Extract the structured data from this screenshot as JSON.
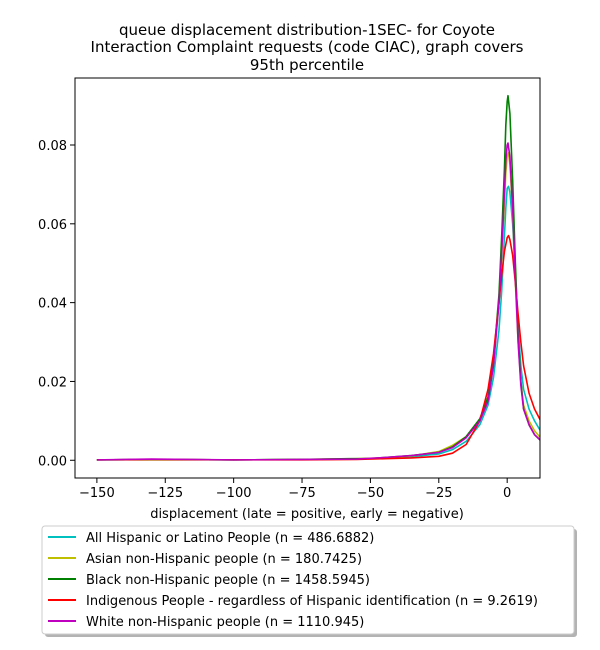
{
  "chart_data": {
    "type": "line",
    "title_lines": [
      "queue displacement distribution-1SEC-  for Coyote",
      "Interaction Complaint  requests (code CIAC), graph covers",
      "95th percentile"
    ],
    "xlabel": "displacement (late = positive, early = negative)",
    "ylabel": "",
    "xlim": [
      -158,
      12
    ],
    "ylim": [
      -0.0045,
      0.097
    ],
    "xticks": [
      -150,
      -125,
      -100,
      -75,
      -50,
      -25,
      0
    ],
    "xtick_labels": [
      "−150",
      "−125",
      "−100",
      "−75",
      "−50",
      "−25",
      "0"
    ],
    "yticks": [
      0.0,
      0.02,
      0.04,
      0.06,
      0.08
    ],
    "ytick_labels": [
      "0.00",
      "0.02",
      "0.04",
      "0.06",
      "0.08"
    ],
    "grid": false,
    "legend_position": "below plot",
    "series": [
      {
        "name": "All Hispanic or Latino People (n = 486.6882)",
        "color": "#00bfbf",
        "points": [
          [
            -150,
            0.0001
          ],
          [
            -130,
            0.0002
          ],
          [
            -100,
            0.0001
          ],
          [
            -75,
            0.0002
          ],
          [
            -55,
            0.0003
          ],
          [
            -45,
            0.0006
          ],
          [
            -35,
            0.0009
          ],
          [
            -25,
            0.0016
          ],
          [
            -20,
            0.0027
          ],
          [
            -15,
            0.0048
          ],
          [
            -10,
            0.009
          ],
          [
            -7,
            0.014
          ],
          [
            -5,
            0.021
          ],
          [
            -3,
            0.033
          ],
          [
            -2,
            0.043
          ],
          [
            -1,
            0.057
          ],
          [
            -0.5,
            0.064
          ],
          [
            0,
            0.069
          ],
          [
            0.5,
            0.0695
          ],
          [
            1,
            0.068
          ],
          [
            2,
            0.06
          ],
          [
            3,
            0.047
          ],
          [
            4,
            0.034
          ],
          [
            5,
            0.024
          ],
          [
            6,
            0.018
          ],
          [
            8,
            0.013
          ],
          [
            10,
            0.01
          ],
          [
            13,
            0.0065
          ]
        ]
      },
      {
        "name": "Asian non-Hispanic people (n = 180.7425)",
        "color": "#bfbf00",
        "points": [
          [
            -150,
            0.0001
          ],
          [
            -130,
            0.0001
          ],
          [
            -100,
            0.0001
          ],
          [
            -75,
            0.0002
          ],
          [
            -55,
            0.0004
          ],
          [
            -45,
            0.0006
          ],
          [
            -35,
            0.0011
          ],
          [
            -25,
            0.0022
          ],
          [
            -20,
            0.0038
          ],
          [
            -15,
            0.006
          ],
          [
            -10,
            0.0105
          ],
          [
            -7,
            0.016
          ],
          [
            -5,
            0.025
          ],
          [
            -3,
            0.04
          ],
          [
            -2,
            0.052
          ],
          [
            -1,
            0.065
          ],
          [
            -0.5,
            0.073
          ],
          [
            0,
            0.077
          ],
          [
            0.5,
            0.078
          ],
          [
            1,
            0.075
          ],
          [
            2,
            0.063
          ],
          [
            3,
            0.045
          ],
          [
            4,
            0.03
          ],
          [
            5,
            0.02
          ],
          [
            6,
            0.014
          ],
          [
            8,
            0.01
          ],
          [
            10,
            0.0075
          ],
          [
            13,
            0.005
          ]
        ]
      },
      {
        "name": "Black non-Hispanic people (n = 1458.5945)",
        "color": "#008000",
        "points": [
          [
            -150,
            0.0001
          ],
          [
            -130,
            0.0002
          ],
          [
            -100,
            0.0001
          ],
          [
            -75,
            0.0002
          ],
          [
            -58,
            0.0004
          ],
          [
            -50,
            0.0004
          ],
          [
            -45,
            0.0007
          ],
          [
            -35,
            0.0012
          ],
          [
            -25,
            0.002
          ],
          [
            -20,
            0.0034
          ],
          [
            -15,
            0.006
          ],
          [
            -10,
            0.0105
          ],
          [
            -7,
            0.016
          ],
          [
            -5,
            0.025
          ],
          [
            -3,
            0.042
          ],
          [
            -2,
            0.057
          ],
          [
            -1,
            0.074
          ],
          [
            -0.5,
            0.085
          ],
          [
            0,
            0.091
          ],
          [
            0.3,
            0.0925
          ],
          [
            1,
            0.088
          ],
          [
            2,
            0.071
          ],
          [
            3,
            0.05
          ],
          [
            4,
            0.032
          ],
          [
            5,
            0.02
          ],
          [
            6,
            0.013
          ],
          [
            8,
            0.009
          ],
          [
            10,
            0.0065
          ],
          [
            13,
            0.0045
          ]
        ]
      },
      {
        "name": "Indigenous People - regardless of Hispanic identification (n = 9.2619)",
        "color": "#ff0000",
        "points": [
          [
            -150,
            0.0001
          ],
          [
            -130,
            0.0002
          ],
          [
            -100,
            0.0001
          ],
          [
            -75,
            0.0001
          ],
          [
            -55,
            0.0002
          ],
          [
            -45,
            0.0004
          ],
          [
            -35,
            0.0006
          ],
          [
            -25,
            0.001
          ],
          [
            -20,
            0.0018
          ],
          [
            -15,
            0.004
          ],
          [
            -10,
            0.01
          ],
          [
            -7,
            0.018
          ],
          [
            -5,
            0.027
          ],
          [
            -3,
            0.04
          ],
          [
            -2,
            0.047
          ],
          [
            -1,
            0.053
          ],
          [
            0,
            0.0565
          ],
          [
            0.5,
            0.057
          ],
          [
            1,
            0.056
          ],
          [
            2,
            0.052
          ],
          [
            3,
            0.045
          ],
          [
            4,
            0.037
          ],
          [
            5,
            0.03
          ],
          [
            6,
            0.024
          ],
          [
            8,
            0.017
          ],
          [
            10,
            0.013
          ],
          [
            13,
            0.009
          ]
        ]
      },
      {
        "name": "White non-Hispanic people (n = 1110.945)",
        "color": "#bf00bf",
        "points": [
          [
            -150,
            0.0001
          ],
          [
            -130,
            0.0003
          ],
          [
            -100,
            0.0001
          ],
          [
            -75,
            0.0002
          ],
          [
            -55,
            0.0003
          ],
          [
            -45,
            0.0007
          ],
          [
            -35,
            0.0012
          ],
          [
            -25,
            0.002
          ],
          [
            -20,
            0.0032
          ],
          [
            -15,
            0.0057
          ],
          [
            -10,
            0.01
          ],
          [
            -7,
            0.015
          ],
          [
            -5,
            0.024
          ],
          [
            -3,
            0.04
          ],
          [
            -2,
            0.053
          ],
          [
            -1,
            0.068
          ],
          [
            -0.5,
            0.076
          ],
          [
            0,
            0.08
          ],
          [
            0.3,
            0.0805
          ],
          [
            1,
            0.077
          ],
          [
            2,
            0.064
          ],
          [
            3,
            0.046
          ],
          [
            4,
            0.03
          ],
          [
            5,
            0.019
          ],
          [
            6,
            0.013
          ],
          [
            8,
            0.009
          ],
          [
            10,
            0.0065
          ],
          [
            13,
            0.0045
          ]
        ]
      }
    ]
  }
}
